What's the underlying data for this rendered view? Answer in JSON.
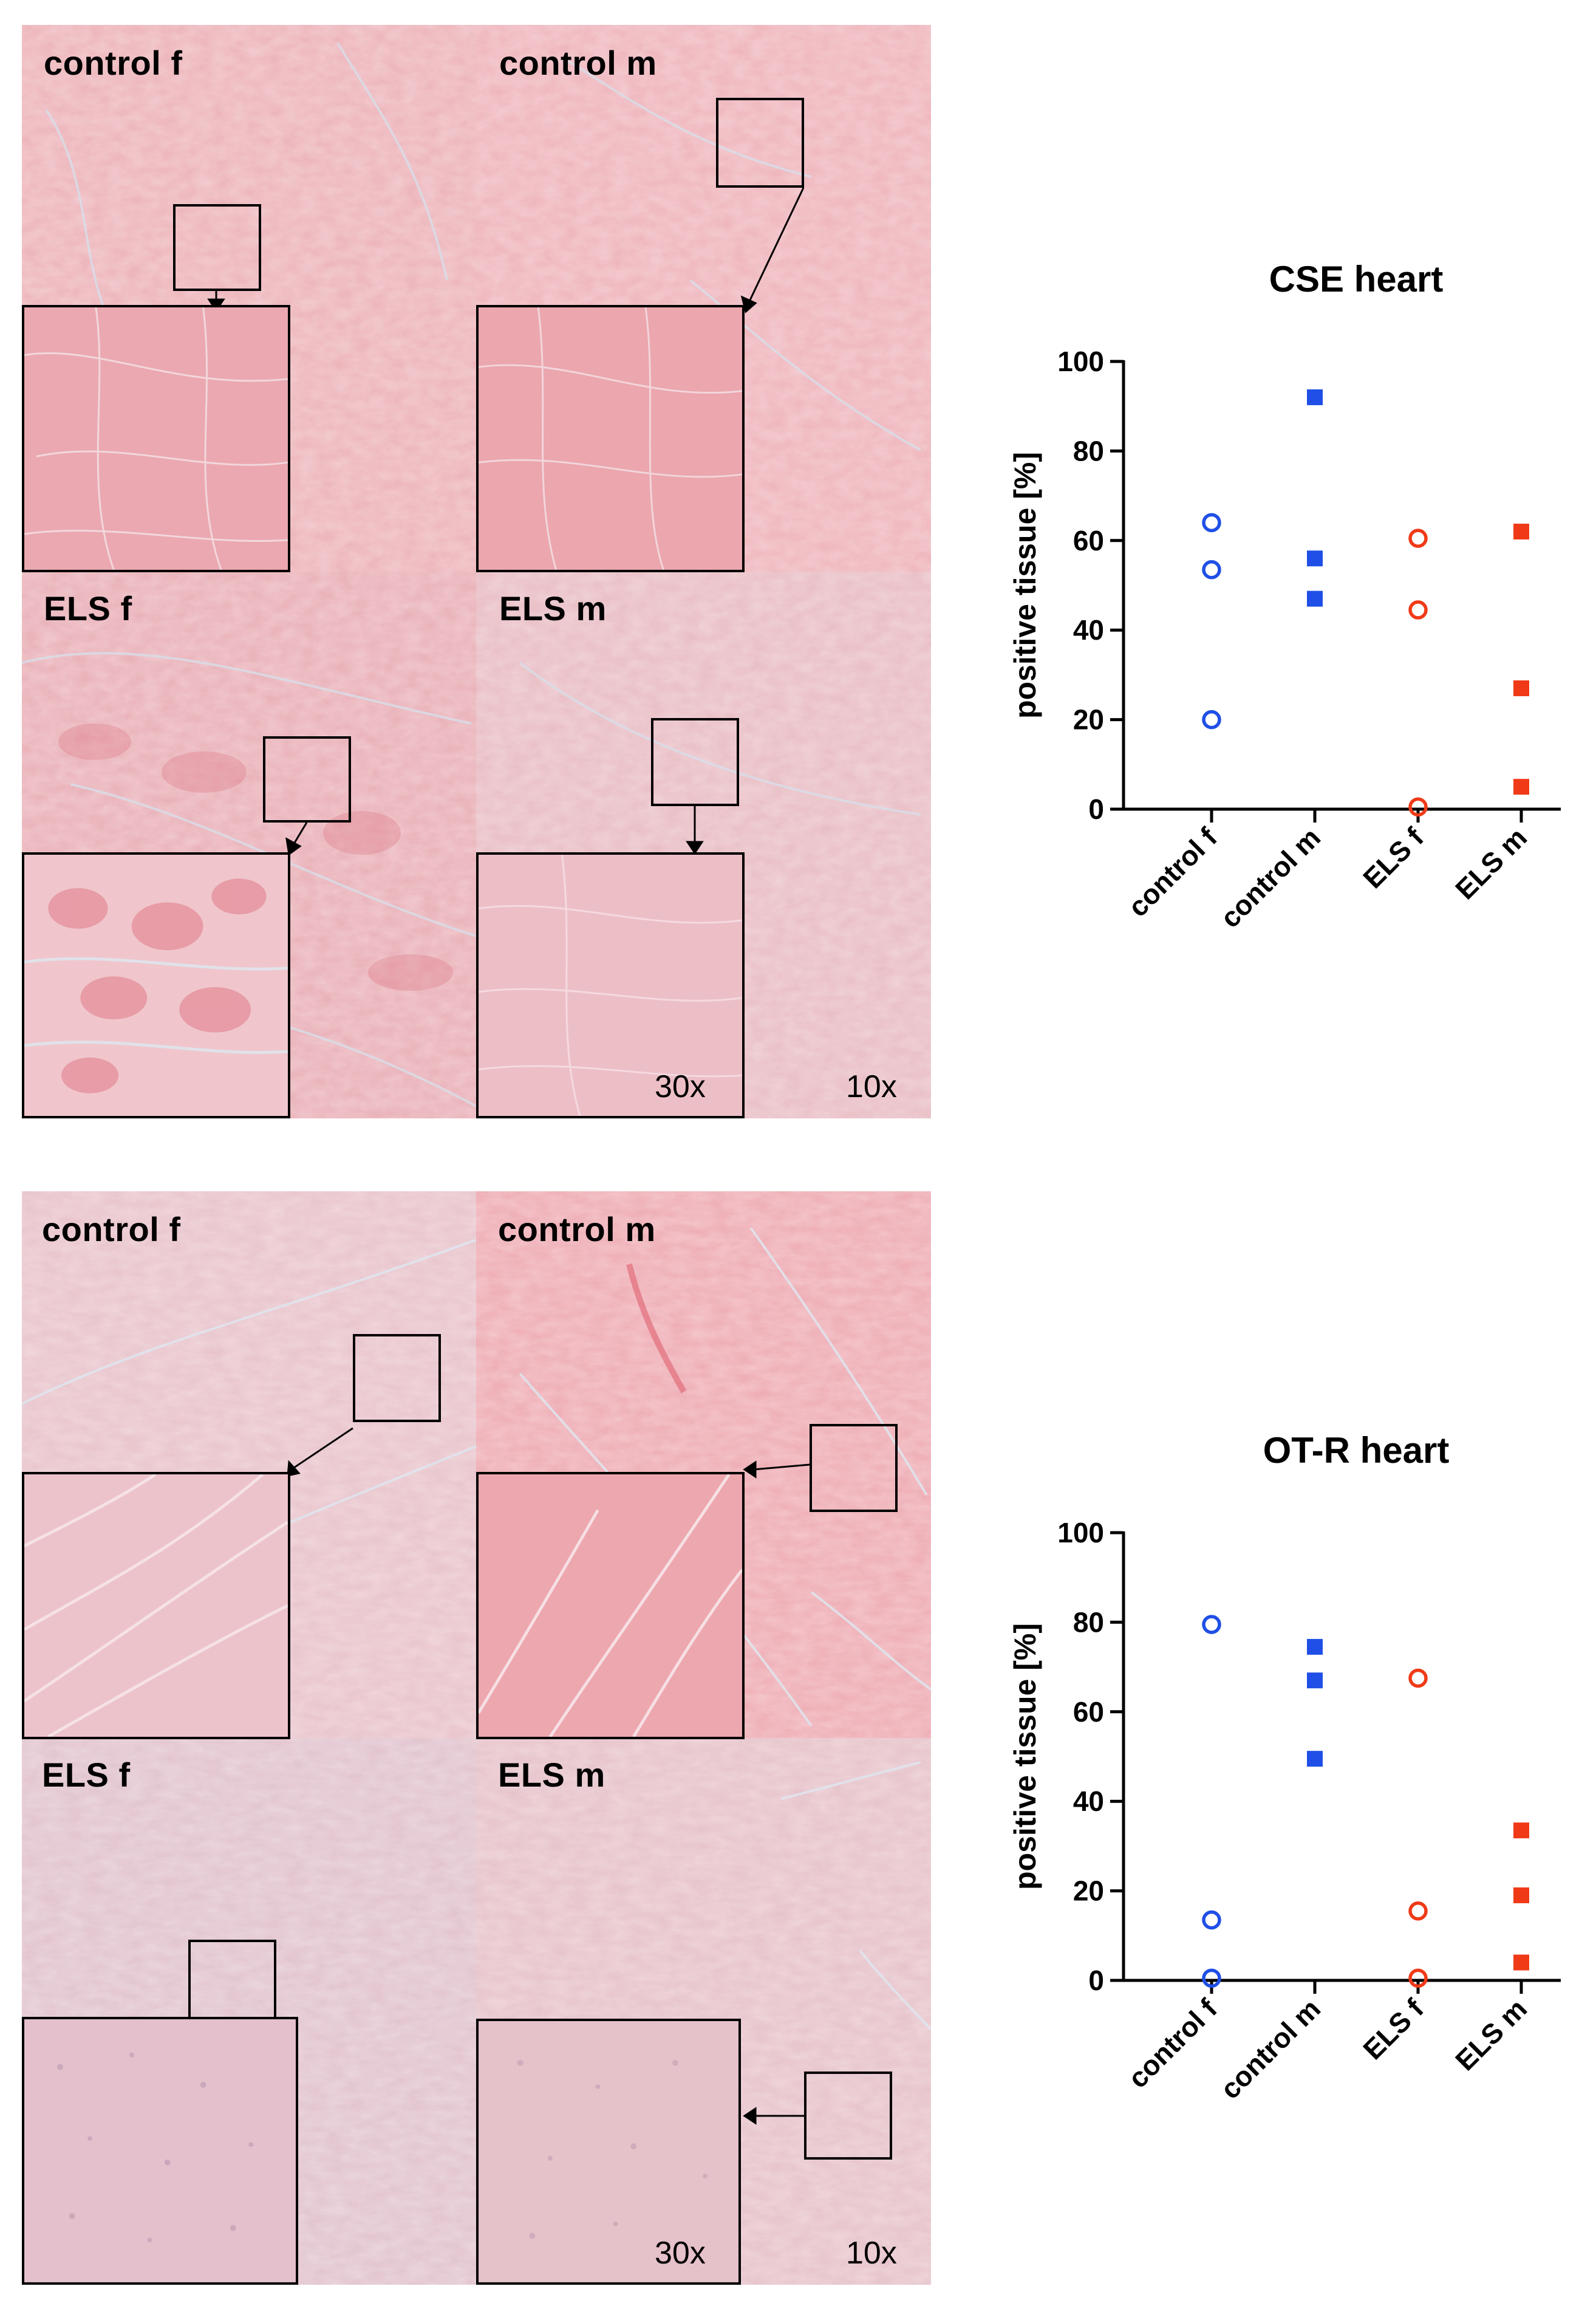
{
  "figure": {
    "panels": [
      {
        "id": "cse",
        "quadrant_labels": [
          "control f",
          "control m",
          "ELS f",
          "ELS m"
        ],
        "magnification_inset": "30x",
        "magnification_overview": "10x"
      },
      {
        "id": "otr",
        "quadrant_labels": [
          "control f",
          "control m",
          "ELS f",
          "ELS m"
        ],
        "magnification_inset": "30x",
        "magnification_overview": "10x"
      }
    ]
  },
  "colors": {
    "blue": "#1f4fe6",
    "red": "#f03a17",
    "tissue_pink": "#ecb4ba",
    "tissue_pale": "#e3c6cf"
  },
  "chart_data": [
    {
      "type": "scatter",
      "title": "CSE heart",
      "ylabel": "positive tissue [%]",
      "xlabel": "",
      "ylim": [
        0,
        100
      ],
      "yticks": [
        0,
        20,
        40,
        60,
        80,
        100
      ],
      "categories": [
        "control f",
        "control m",
        "ELS f",
        "ELS m"
      ],
      "series": [
        {
          "name": "control f",
          "marker": "open-circle",
          "color": "#1f4fe6",
          "values": [
            64,
            53.5,
            20
          ]
        },
        {
          "name": "control m",
          "marker": "filled-square",
          "color": "#1f4fe6",
          "values": [
            92,
            56,
            47
          ]
        },
        {
          "name": "ELS f",
          "marker": "open-circle",
          "color": "#f03a17",
          "values": [
            60.5,
            44.5,
            0.5
          ]
        },
        {
          "name": "ELS m",
          "marker": "filled-square",
          "color": "#f03a17",
          "values": [
            62,
            27,
            5
          ]
        }
      ]
    },
    {
      "type": "scatter",
      "title": "OT-R heart",
      "ylabel": "positive tissue [%]",
      "xlabel": "",
      "ylim": [
        0,
        100
      ],
      "yticks": [
        0,
        20,
        40,
        60,
        80,
        100
      ],
      "categories": [
        "control f",
        "control m",
        "ELS f",
        "ELS m"
      ],
      "series": [
        {
          "name": "control f",
          "marker": "open-circle",
          "color": "#1f4fe6",
          "values": [
            79.5,
            13.5,
            0.5
          ]
        },
        {
          "name": "control m",
          "marker": "filled-square",
          "color": "#1f4fe6",
          "values": [
            74.5,
            67,
            49.5
          ]
        },
        {
          "name": "ELS f",
          "marker": "open-circle",
          "color": "#f03a17",
          "values": [
            67.5,
            15.5,
            0.5
          ]
        },
        {
          "name": "ELS m",
          "marker": "filled-square",
          "color": "#f03a17",
          "values": [
            33.5,
            19,
            4
          ]
        }
      ]
    }
  ]
}
